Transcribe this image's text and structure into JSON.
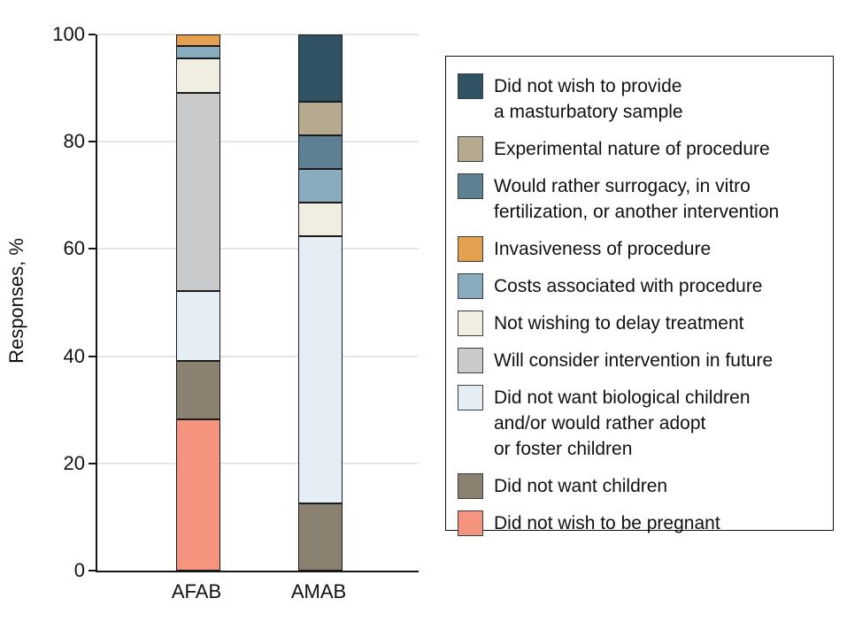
{
  "figure": {
    "background": "#ffffff",
    "axis_color": "#161616",
    "gridline_color": "#e6e6e6",
    "bar_border_color": "#1a1a1a"
  },
  "chart_data": {
    "type": "bar",
    "stacked": true,
    "title": "",
    "xlabel": "",
    "ylabel": "Responses, %",
    "ylim": [
      0,
      100
    ],
    "yticks": [
      0,
      20,
      40,
      60,
      80,
      100
    ],
    "grid": true,
    "legend_position": "right",
    "categories": [
      "AFAB",
      "AMAB"
    ],
    "series": [
      {
        "name": "Did not wish to provide\na masturbatory sample",
        "color": "#2f5362",
        "values": [
          0,
          12.5
        ]
      },
      {
        "name": "Experimental nature of procedure",
        "color": "#b5a98f",
        "values": [
          0,
          6.3
        ]
      },
      {
        "name": "Would rather surrogacy, in vitro\nfertilization, or another intervention",
        "color": "#5d8193",
        "values": [
          0,
          6.3
        ]
      },
      {
        "name": "Invasiveness of procedure",
        "color": "#e3a04e",
        "values": [
          2.2,
          0
        ]
      },
      {
        "name": "Costs associated with procedure",
        "color": "#88abbe",
        "values": [
          2.2,
          6.3
        ]
      },
      {
        "name": "Not wishing to delay treatment",
        "color": "#efeee1",
        "values": [
          6.5,
          6.3
        ]
      },
      {
        "name": "Will consider intervention in future",
        "color": "#c8cacc",
        "values": [
          37.0,
          0
        ]
      },
      {
        "name": "Did not want biological children\nand/or would rather adopt\nor foster children",
        "color": "#e5eef4",
        "values": [
          13.0,
          50.0
        ]
      },
      {
        "name": "Did not want children",
        "color": "#8a8171",
        "values": [
          10.9,
          12.5
        ]
      },
      {
        "name": "Did not wish to be pregnant",
        "color": "#f3947e",
        "values": [
          28.3,
          0
        ]
      }
    ]
  }
}
